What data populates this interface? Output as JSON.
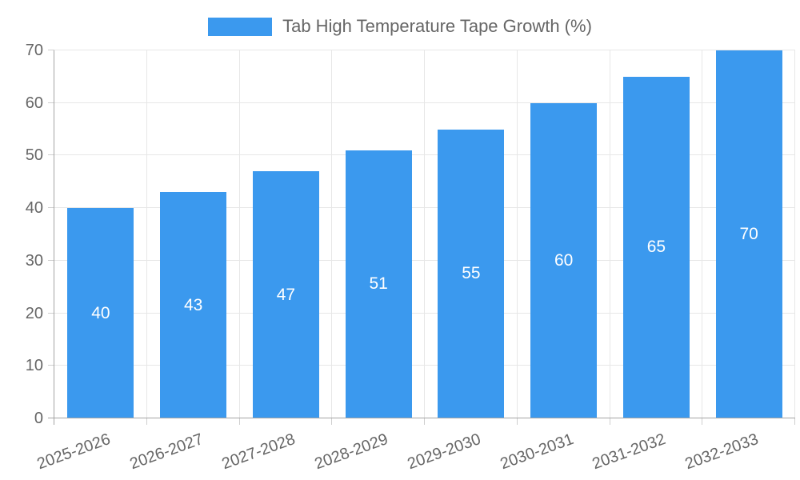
{
  "chart_data": {
    "type": "bar",
    "title": "",
    "legend_label": "Tab High Temperature Tape Growth (%)",
    "legend_position": "top",
    "categories": [
      "2025-2026",
      "2026-2027",
      "2027-2028",
      "2028-2029",
      "2029-2030",
      "2030-2031",
      "2031-2032",
      "2032-2033"
    ],
    "values": [
      40,
      43,
      47,
      51,
      55,
      60,
      65,
      70
    ],
    "xlabel": "",
    "ylabel": "",
    "ylim": [
      0,
      70
    ],
    "yticks": [
      0,
      10,
      20,
      30,
      40,
      50,
      60,
      70
    ],
    "grid": true,
    "x_label_rotation_deg": -20,
    "colors": {
      "bar": "#3b99ee",
      "bar_value_label": "#ffffff",
      "axis_text": "#666666",
      "grid_line": "#e7e7e7",
      "axis_line": "#a3a3a3",
      "tick_mark": "#cfcfcf",
      "background": "#ffffff"
    }
  }
}
